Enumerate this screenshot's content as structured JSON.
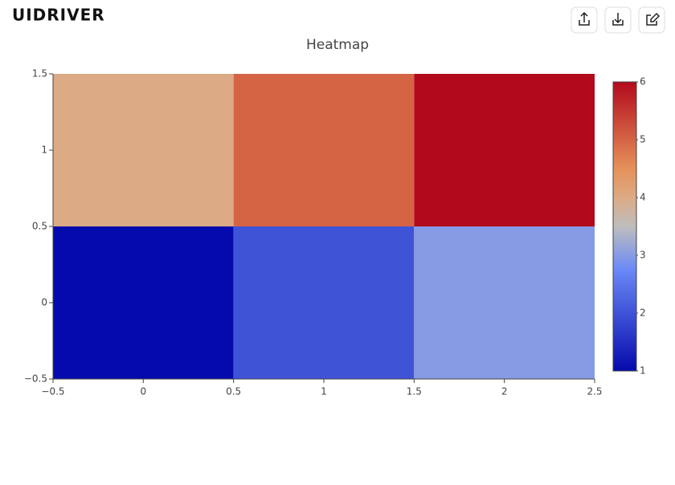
{
  "header": {
    "logo": "UIDRIVER"
  },
  "chart_data": {
    "type": "heatmap",
    "title": "Heatmap",
    "x": [
      0,
      1,
      2
    ],
    "y": [
      0,
      1
    ],
    "z": [
      [
        1,
        2,
        3
      ],
      [
        4,
        5,
        6
      ]
    ],
    "xlim": [
      -0.5,
      2.5
    ],
    "xticks": [
      {
        "value": -0.5,
        "label": "−0.5"
      },
      0,
      0.5,
      1,
      1.5,
      2,
      2.5
    ],
    "ylim": [
      -0.5,
      1.5
    ],
    "yticks": [
      {
        "value": -0.5,
        "label": "−0.5"
      },
      0,
      0.5,
      1,
      1.5
    ],
    "zlim": [
      1,
      6
    ],
    "colorbar_ticks": [
      1,
      2,
      3,
      4,
      5,
      6
    ],
    "colorscale": [
      [
        0,
        "#050aac"
      ],
      [
        0.35,
        "#6a89f7"
      ],
      [
        0.5,
        "#bebebe"
      ],
      [
        0.6,
        "#dcaa84"
      ],
      [
        0.7,
        "#e6915a"
      ],
      [
        1,
        "#b20a1c"
      ]
    ]
  }
}
